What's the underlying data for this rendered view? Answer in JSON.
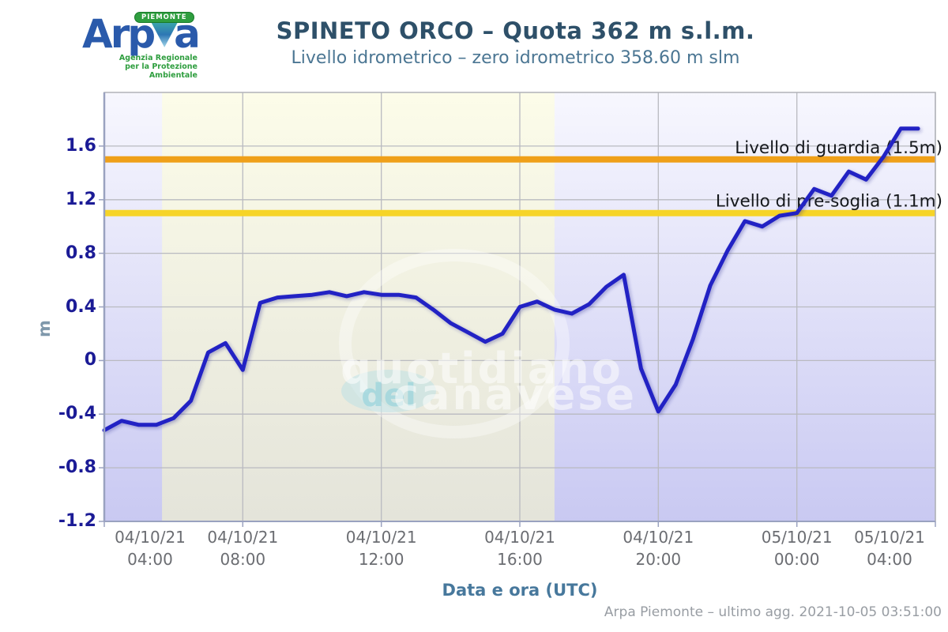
{
  "header": {
    "logo": {
      "brand": "Arpa",
      "region_banner": "PIEMONTE",
      "tagline_line1": "Agenzia Regionale",
      "tagline_line2": "per la Protezione Ambientale"
    },
    "title": "SPINETO ORCO – Quota 362 m s.l.m.",
    "subtitle": "Livello idrometrico – zero idrometrico 358.60 m slm"
  },
  "chart_data": {
    "type": "line",
    "title": "SPINETO ORCO – Quota 362 m s.l.m.",
    "subtitle": "Livello idrometrico – zero idrometrico 358.60 m slm",
    "xlabel": "Data e ora (UTC)",
    "ylabel": "m",
    "ylim": [
      -1.2,
      2.0
    ],
    "yticks": [
      1.6,
      1.2,
      0.8,
      0.4,
      0,
      -0.4,
      -0.8,
      -1.2
    ],
    "ytick_labels": [
      "1.6",
      "1.2",
      "0.8",
      "0.4",
      "0",
      "-0.4",
      "-0.8",
      "-1.2"
    ],
    "xticks": [
      {
        "date": "04/10/21",
        "time": "04:00"
      },
      {
        "date": "04/10/21",
        "time": "08:00"
      },
      {
        "date": "04/10/21",
        "time": "12:00"
      },
      {
        "date": "04/10/21",
        "time": "16:00"
      },
      {
        "date": "04/10/21",
        "time": "20:00"
      },
      {
        "date": "05/10/21",
        "time": "00:00"
      },
      {
        "date": "05/10/21",
        "time": "04:00"
      }
    ],
    "x_total_hours": 24,
    "start": "04/10/21 04:00 UTC",
    "end": "05/10/21 03:30 UTC",
    "sample_interval_minutes": 30,
    "series": [
      {
        "name": "Livello idrometrico (m)",
        "color": "#2222c4",
        "values": [
          -0.52,
          -0.45,
          -0.48,
          -0.48,
          -0.43,
          -0.3,
          0.06,
          0.13,
          -0.07,
          0.43,
          0.47,
          0.48,
          0.49,
          0.51,
          0.48,
          0.51,
          0.49,
          0.49,
          0.47,
          0.38,
          0.28,
          0.21,
          0.14,
          0.2,
          0.4,
          0.44,
          0.38,
          0.35,
          0.42,
          0.55,
          0.64,
          -0.06,
          -0.38,
          -0.18,
          0.16,
          0.56,
          0.82,
          1.04,
          1.0,
          1.08,
          1.1,
          1.28,
          1.23,
          1.41,
          1.35,
          1.52,
          1.73,
          1.73
        ]
      }
    ],
    "thresholds": [
      {
        "label": "Livello di guardia (1.5m)",
        "value": 1.5,
        "color": "#efa019"
      },
      {
        "label": "Livello di pre-soglia (1.1m)",
        "value": 1.1,
        "color": "#f6d428"
      }
    ],
    "daylight_band": {
      "from": "05:40",
      "to": "17:00"
    },
    "grid": true,
    "legend_position": "none",
    "watermark": {
      "line1": "quotidiano",
      "line2_small": "del",
      "line2": "canavese"
    }
  },
  "footer": {
    "credit": "Arpa Piemonte – ultimo agg. 2021-10-05 03:51:00"
  }
}
